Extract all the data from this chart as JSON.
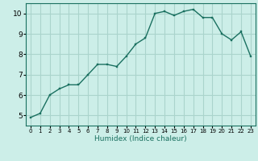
{
  "x": [
    0,
    1,
    2,
    3,
    4,
    5,
    6,
    7,
    8,
    9,
    10,
    11,
    12,
    13,
    14,
    15,
    16,
    17,
    18,
    19,
    20,
    21,
    22,
    23
  ],
  "y": [
    4.9,
    5.1,
    6.0,
    6.3,
    6.5,
    6.5,
    7.0,
    7.5,
    7.5,
    7.4,
    7.9,
    8.5,
    8.8,
    10.0,
    10.1,
    9.9,
    10.1,
    10.2,
    9.8,
    9.8,
    9.0,
    8.7,
    9.1,
    7.9
  ],
  "xlabel": "Humidex (Indice chaleur)",
  "line_color": "#1a7060",
  "marker_color": "#1a7060",
  "bg_color": "#cceee8",
  "grid_color": "#aad4cc",
  "xlim": [
    -0.5,
    23.5
  ],
  "ylim": [
    4.5,
    10.5
  ],
  "yticks": [
    5,
    6,
    7,
    8,
    9,
    10
  ],
  "xticks": [
    0,
    1,
    2,
    3,
    4,
    5,
    6,
    7,
    8,
    9,
    10,
    11,
    12,
    13,
    14,
    15,
    16,
    17,
    18,
    19,
    20,
    21,
    22,
    23
  ],
  "xlabel_fontsize": 6.5,
  "tick_fontsize_x": 5.0,
  "tick_fontsize_y": 6.5
}
